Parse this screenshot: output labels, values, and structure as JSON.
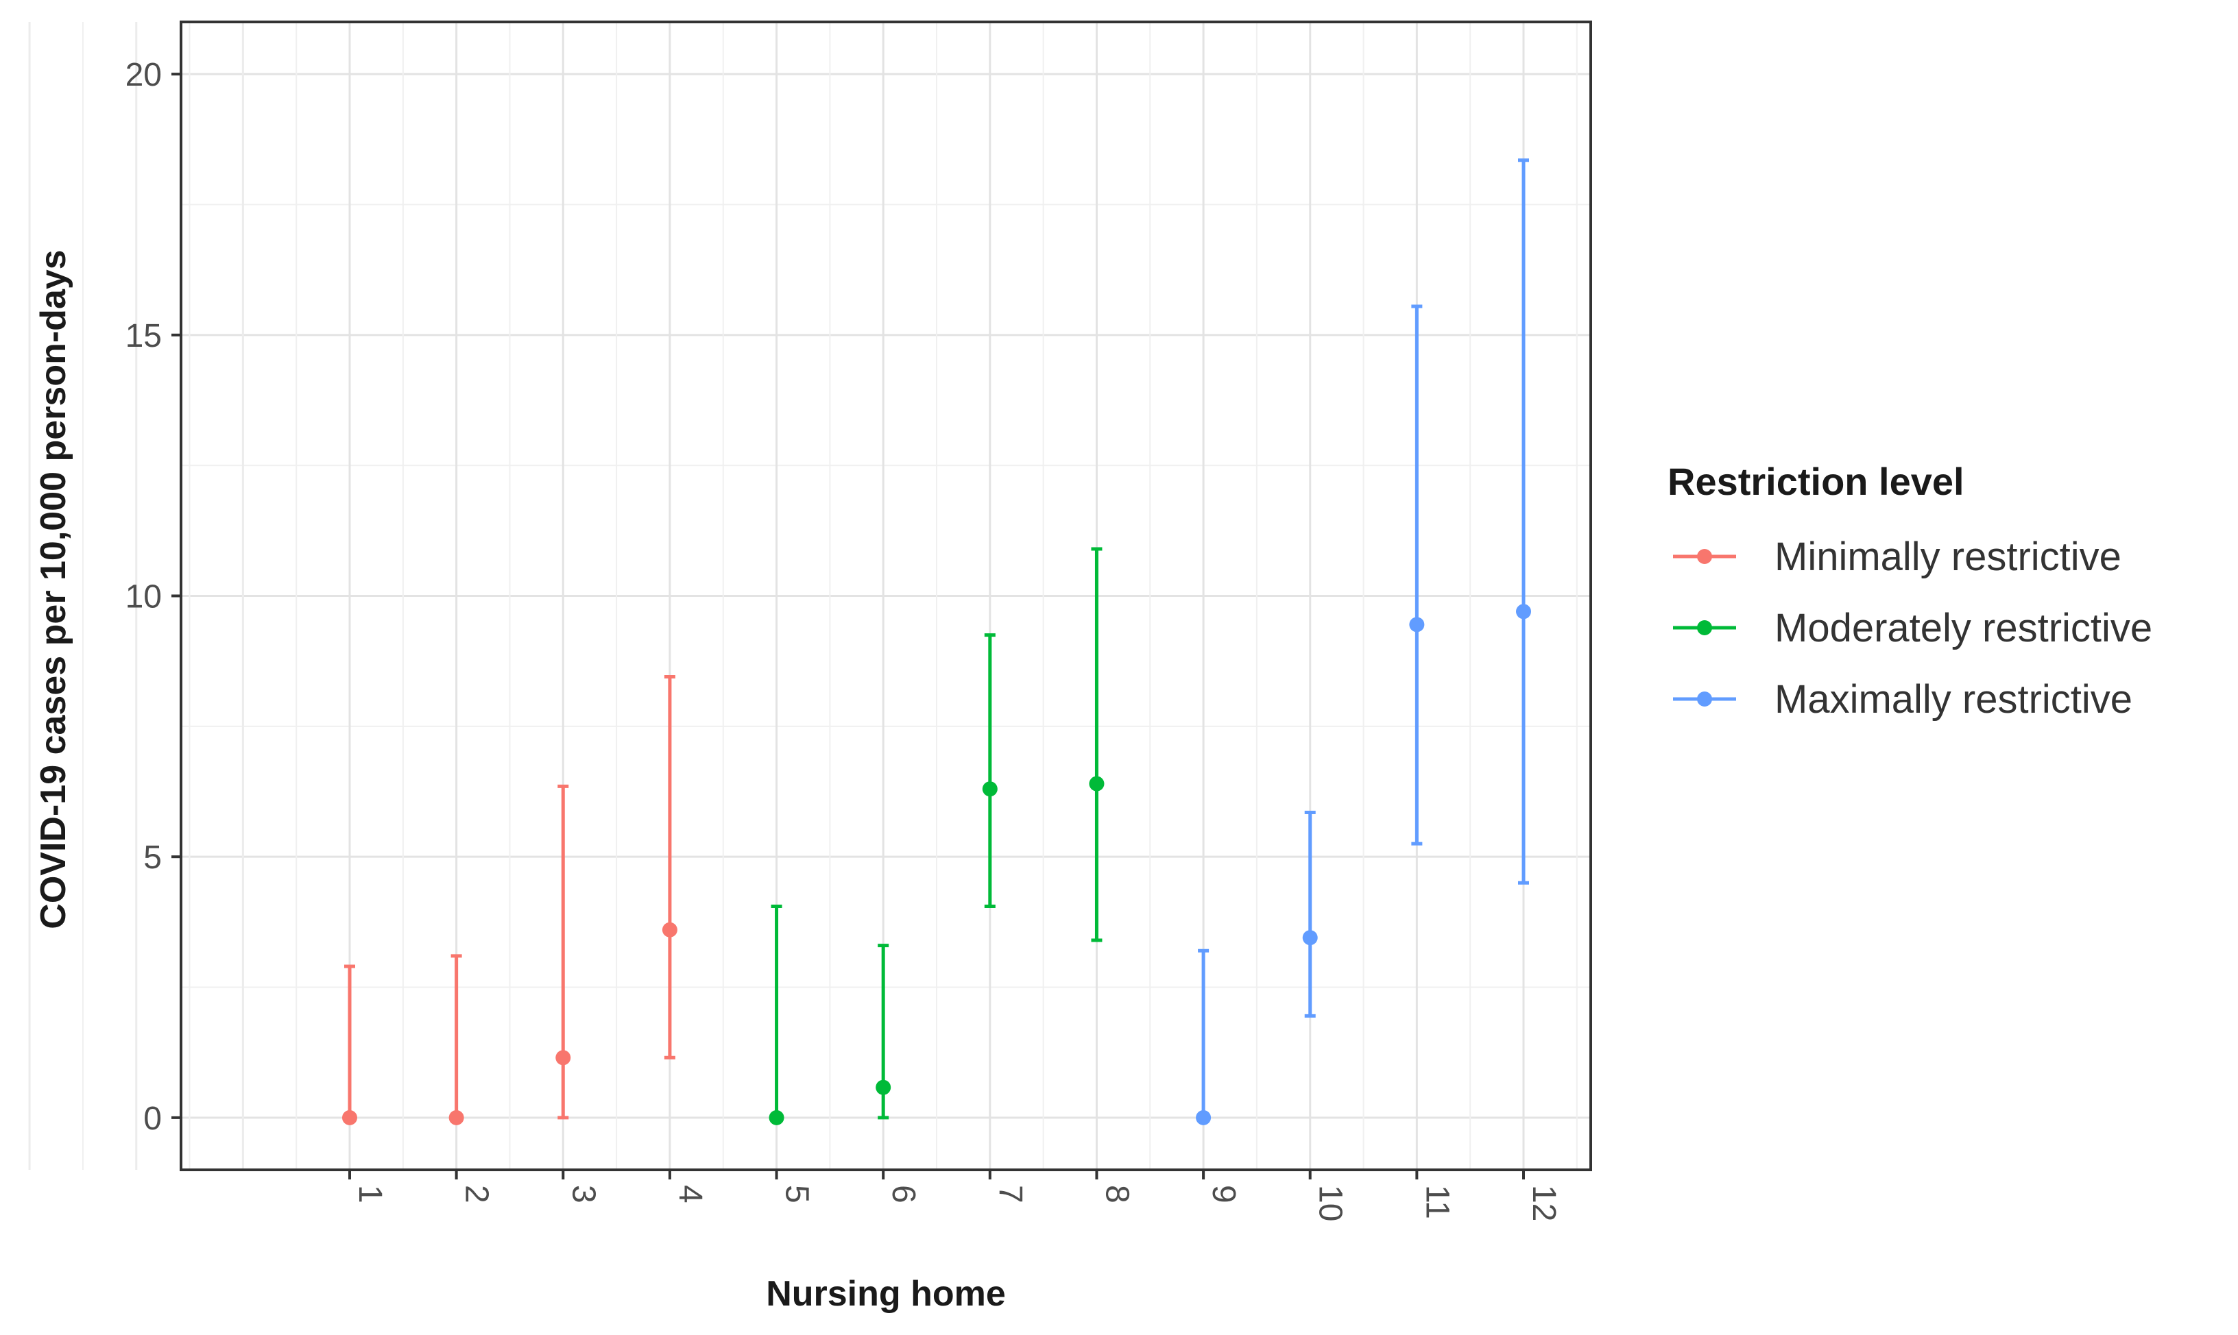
{
  "chart_data": {
    "type": "scatter",
    "xlabel": "Nursing home",
    "ylabel": "COVID-19 cases per 10,000 person-days",
    "ylim": [
      -1,
      21
    ],
    "yticks": [
      0,
      5,
      10,
      15,
      20
    ],
    "grid": true,
    "legend": {
      "title": "Restriction level",
      "placement": "right"
    },
    "categories": [
      "1",
      "2",
      "3",
      "4",
      "5",
      "6",
      "7",
      "8",
      "9",
      "10",
      "11",
      "12"
    ],
    "series": [
      {
        "name": "Minimally restrictive",
        "color": "#F8766D",
        "points": [
          {
            "x": "1",
            "y": 0,
            "lower": 0,
            "upper": 2.9
          },
          {
            "x": "2",
            "y": 0,
            "lower": 0,
            "upper": 3.1
          },
          {
            "x": "3",
            "y": 1.15,
            "lower": 0,
            "upper": 6.35
          },
          {
            "x": "4",
            "y": 3.6,
            "lower": 1.15,
            "upper": 8.45
          }
        ]
      },
      {
        "name": "Moderately restrictive",
        "color": "#00BA38",
        "points": [
          {
            "x": "5",
            "y": 0,
            "lower": 0,
            "upper": 4.05
          },
          {
            "x": "6",
            "y": 0.58,
            "lower": 0,
            "upper": 3.3
          },
          {
            "x": "7",
            "y": 6.3,
            "lower": 4.05,
            "upper": 9.25
          },
          {
            "x": "8",
            "y": 6.4,
            "lower": 3.4,
            "upper": 10.9
          }
        ]
      },
      {
        "name": "Maximally restrictive",
        "color": "#619CFF",
        "points": [
          {
            "x": "9",
            "y": 0,
            "lower": 0,
            "upper": 3.2
          },
          {
            "x": "10",
            "y": 3.45,
            "lower": 1.95,
            "upper": 5.85
          },
          {
            "x": "11",
            "y": 9.45,
            "lower": 5.25,
            "upper": 15.55
          },
          {
            "x": "12",
            "y": 9.7,
            "lower": 4.5,
            "upper": 18.35
          }
        ]
      }
    ]
  }
}
